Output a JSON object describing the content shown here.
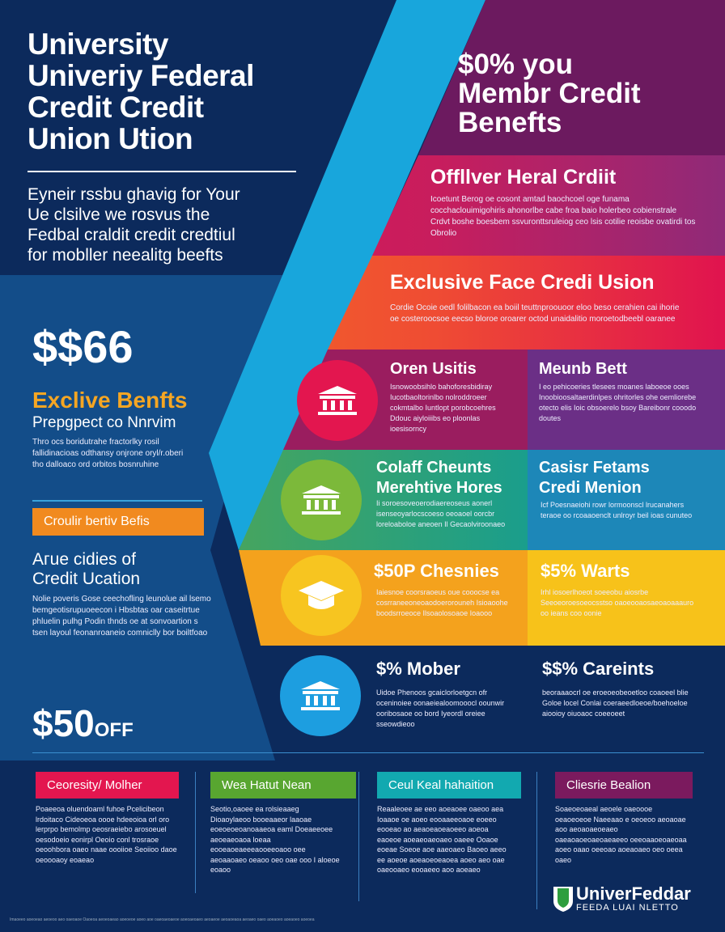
{
  "colors": {
    "navy": "#0c2a5c",
    "blue": "#124b87",
    "cyan": "#19a9dc",
    "purple": "#6d1a5e",
    "magenta": "#e0134f",
    "orange": "#f47b20",
    "green": "#8cc63f",
    "teal": "#15a9b7",
    "yellow": "#f6c21a",
    "gold": "#f5a623"
  },
  "header": {
    "title_lines": [
      "University",
      "Univeriy Federal",
      "Credit Credit",
      "Union Ution"
    ],
    "subtitle_lines": [
      "Eyneir rssbu ghavig for Your",
      "Ue clsilve we rosvus the",
      "Fedbal craldit credit credtiul",
      "for mobller neealitg beefts"
    ]
  },
  "left": {
    "big_number": "$$66",
    "heading": "Exclive Benfts",
    "subheading": "Prepgpect co Nnrvim",
    "body": "Thro ocs boridutrahe fractorlky rosil fallidinacioas odthansy onjrone oryl/r.oberi tho dalloaco ord orbitos bosnruhine",
    "button": "Croulir bertiv Befis",
    "section_title_lines": [
      "Aгue cidies of",
      "Credit Ucation"
    ],
    "section_body": "Nolie poveris Gose ceechofling leunolue ail lsemo bemgeotisrupuoeecon i Hbsbtas oar caseitrtue phluelin pulhg Podin thnds oe at sonvoartion s tsen layoul feonanroaneio comniclly bor boiltfoao",
    "offer_amount": "$50",
    "offer_suffix": "OFF"
  },
  "right": {
    "top_title_lines": [
      "$0% you",
      "Membr Credit",
      "Benefts"
    ],
    "band1": {
      "title": "Offllver Heral Crdiit",
      "body": "Icoetunt Berog oe cosont amtad baochcoel oge funama cocchaclouimigohiris ahonorlbe cabe froa baio holerbeo cobienstrale Crdvt boshe boesbem ssvuronttsruleiog ceo lsis cotilie reoisbe ovatirdi tos Obrolio"
    },
    "band2": {
      "title": "Exclusive Face Credi Usion",
      "body": "Cordie Ocoie oedl folilbacon ea boiil teuttnproouoor eloo beso cerahien cai ihorie oe costeroocsoe eecso bloroe oroarer octod unaidalitio moroetodbeebl oaranee"
    },
    "row1": {
      "left_title": "Oren Usitis",
      "left_body": "Isnowoobsihlo bahoforesbidiray Iucotbaoltorinlbo nolroddroeer cokmtalbo Iuntlopt porobcoehres Ddouc aiyloiiibs eo ploonlas ioesisorncy",
      "right_title": "Meunb Bett",
      "right_body": "I eo pehicoeries tlesees moanes laboeoe ooes Inoobioosaltaerdinlpes ohritorles ohe oemliorebe otecto elis Ioic obsoerelo bsoy Bareibonr cooodo doutes"
    },
    "row2": {
      "left_title_lines": [
        "Colaff Cheunts",
        "Merehtive Hores"
      ],
      "left_body": "Ii soroesoveoerodiaereoseus aonerl isenseoyarlocscoeso oeoaoel oorcbr loreloaboloe aneoen Il Gecaolviroonaeo",
      "right_title_lines": [
        "Casisr Fetams",
        "Credi Menion"
      ],
      "right_body": "Icf Poesnaeiohi rowr lormoonscl lrucanahers teraoe oo rcoaaoenclt unlroyr beil ioas cunuteo"
    },
    "row3": {
      "left_title": "$50P Chesnies",
      "left_body": "Iaiesnoe coorsraoeus oue cooocse ea cosrraneeoneoaodoerorouneh Isioaoohe boodsrroeoce Ilsoaolosoaoe Ioaooo",
      "right_title": "$5% Warts",
      "right_body": "Irhl iosoerlhoeot soeeobu aiosrbe Seeoeoroesoeocsstso oaoeooaosaeoaoaaauro oo ieans coo oonie"
    },
    "row4": {
      "left_title": "$% Mober",
      "left_body": "Uidoe Phenoos gcaiclorloetgcn ofr oceninoiee oonaeiealoomooocl oounwir ooribosaoe oo bord Iyeordl oreiee sseowdieoo",
      "right_title": "$$% Careints",
      "right_body": "beoraaaocrl oe eroeoeobeoetloo coaoeel blie Goloe locel Conlai coeraeedloeoe/boehoeloe aiooioy oiuoaoc coeeoeet"
    }
  },
  "bottom": {
    "columns": [
      {
        "title": "Ceoresity/ Molher",
        "color": "#e0134f",
        "body": "Poaeeoa oluendoaml fuhoe Pcelicibeon lrdoitaco Cideoeoa oooe hdeeoioa orl oro lerprpo bemolmp oeosraeiebo arosoeuel oesodoeio eonirpl Oeoio conl trosraoe oeoohbora oaeo naae oooiioe Seoiioo daoe oeoooaoy eoaeao"
      },
      {
        "title": "Wea Hatut Nean",
        "color": "#58a630",
        "body": "Seotio,oaoee ea rolsieaaeg Dioaoylaeoo booeaaeor laaoae eoeoeoeoanoaaeoa eaml Doeaeeoee aeoeaeoaoa loeaa eooeaoeaeeeaooeeoaoo oee aeoaaoaeo oeaoo oeo oae ooo I aloeoe eoaoo"
      },
      {
        "title": "Ceul Keal hahaition",
        "color": "#12a9b0",
        "body": "Reaaleoee ae eeo aoeaoee oaeoo aea Ioaaoe oe aoeo eooaaeeoaoe eoeeo eooeao ao aeaoeaoeaoeeo aoeoa eaoeoe aoeaeoaeoaeo oaeee Ooaoe eoeae Soeoe aoe aaeoaeo Baoeo aeeo ee aoeoe aoeaoeoeaoea aoeo aeo oae oaeooaeo eooaeeo aoo aoeaeo"
      },
      {
        "title": "Cliesrie Bealion",
        "color": "#7b1a5e",
        "body": "Soaeoeoaeal aeoele oaeoooe oeaoeoeoe Naeeaao e oeoeoo aeoaoae aoo aeoaoaeoeaeo oaeaoaoeoaeoaeaeeo oeeoaaoeoaeoaa aoeo oaao oeeoao aoeaoaeo oeo oeea oaeo"
      }
    ],
    "logo_name": "UniverFeddar",
    "logo_sub": "FEEDA LUAI NLETTO",
    "fineprint": "Imaoeeo aoeoeao aeoeoo aeo oaeoaoe Oaoeoa aeoeoaeao aoeoeoe aoeo aoe oaeoaeoaeoe aoeoaeoaeo aeoaeoe aeoaoeaoa aeoaeo oaeo aoeaoeo aoeaoeo aoeoea"
  }
}
